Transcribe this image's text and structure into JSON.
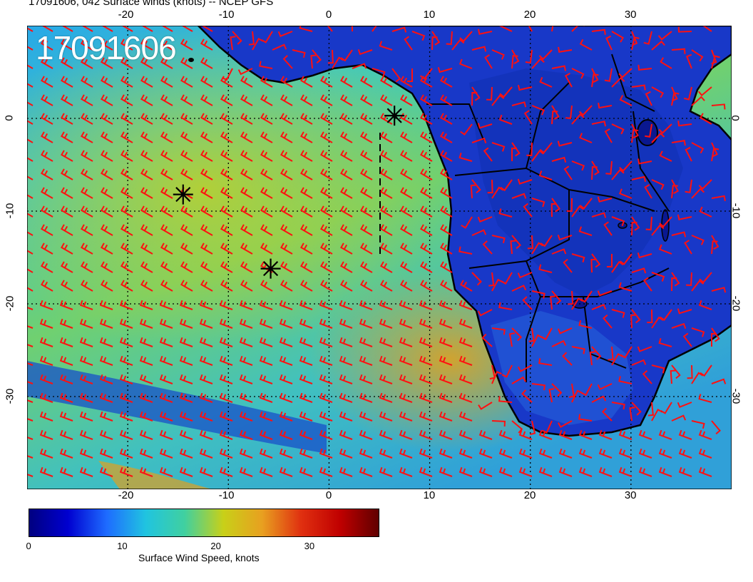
{
  "title": "17091606, 042 Surface winds (knots) -- NCEP GFS",
  "stamp": "17091606",
  "lon_ticks_top": [
    "-20",
    "-10",
    "0",
    "10",
    "20",
    "30"
  ],
  "lon_ticks_bottom": [
    "-20",
    "-10",
    "0",
    "10",
    "20",
    "30"
  ],
  "lat_ticks_left": [
    "0",
    "-10",
    "-20",
    "-30"
  ],
  "lat_ticks_right": [
    "0",
    "-10",
    "-20",
    "-30"
  ],
  "colorbar": {
    "label": "Surface Wind Speed, knots",
    "ticks": [
      "0",
      "10",
      "20",
      "30"
    ],
    "colors": [
      "#000080",
      "#0000d0",
      "#1e6cff",
      "#20c4e0",
      "#40d0a0",
      "#c8d018",
      "#e8a020",
      "#e03010",
      "#c00000",
      "#600000"
    ]
  },
  "markers": [
    {
      "name": "marker-1",
      "lon": 6.5,
      "lat": 0.3
    },
    {
      "name": "marker-2",
      "lon": -14.5,
      "lat": -8.2
    },
    {
      "name": "marker-3",
      "lon": -5.8,
      "lat": -16.2
    }
  ],
  "colors": {
    "ocean_low": "#1e6cff",
    "ocean_mid": "#40c8c8",
    "ocean_high": "#c8d018",
    "land": "#1030c0",
    "barbs": "#ff1010",
    "coast": "#000000"
  }
}
